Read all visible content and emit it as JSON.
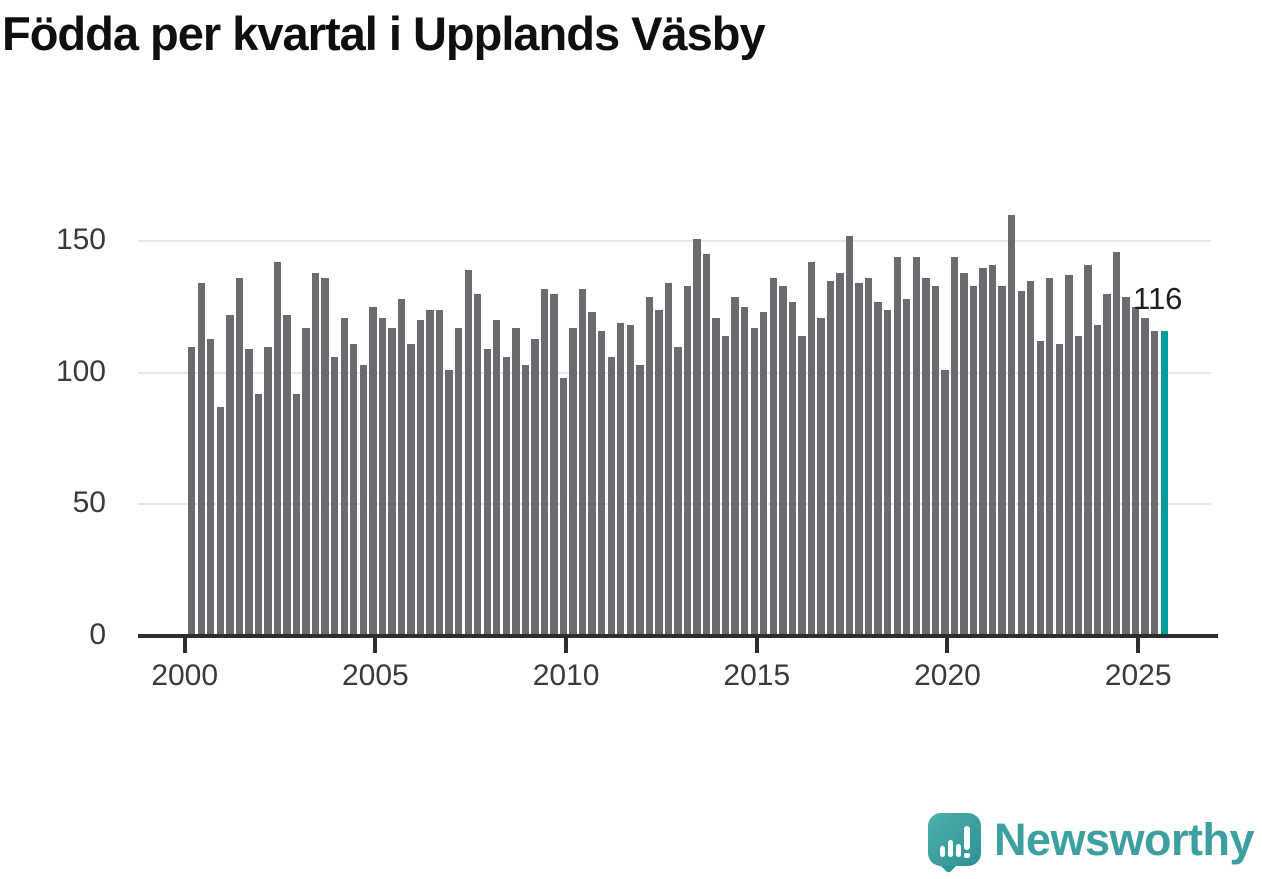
{
  "title": "Födda per kvartal i Upplands Väsby",
  "annotation": {
    "value_label": "116"
  },
  "logo": {
    "text": "Newsworthy"
  },
  "colors": {
    "bar": "#6a6a6f",
    "highlight": "#009b9b",
    "grid": "#e7e7e7",
    "axis": "#2e2e2e",
    "tick_label": "#3a3a3a",
    "title": "#0f0f0f",
    "logo_teal": "#3da0a0"
  },
  "chart_data": {
    "type": "bar",
    "title": "Födda per kvartal i Upplands Väsby",
    "xlabel": "",
    "ylabel": "",
    "start_quarter": "2000Q1",
    "end_quarter": "2025Q3",
    "x_tick_labels": [
      "2000",
      "2005",
      "2010",
      "2015",
      "2020",
      "2025"
    ],
    "x_tick_quarter_indices": [
      0,
      20,
      40,
      60,
      80,
      100
    ],
    "y_ticks": [
      0,
      50,
      100,
      150
    ],
    "ylim": [
      0,
      165
    ],
    "grid": true,
    "legend": false,
    "highlight_last": true,
    "last_value_label": "116",
    "values": [
      110,
      134,
      113,
      87,
      122,
      136,
      109,
      92,
      110,
      142,
      122,
      92,
      117,
      138,
      136,
      106,
      121,
      111,
      103,
      125,
      121,
      117,
      128,
      111,
      120,
      124,
      124,
      101,
      117,
      139,
      130,
      109,
      120,
      106,
      117,
      103,
      113,
      132,
      130,
      98,
      117,
      132,
      123,
      116,
      106,
      119,
      118,
      103,
      129,
      124,
      134,
      110,
      133,
      151,
      145,
      121,
      114,
      129,
      125,
      117,
      123,
      136,
      133,
      127,
      114,
      142,
      121,
      135,
      138,
      152,
      134,
      136,
      127,
      124,
      144,
      128,
      144,
      136,
      133,
      101,
      144,
      138,
      133,
      140,
      141,
      133,
      160,
      131,
      135,
      112,
      136,
      111,
      137,
      114,
      141,
      118,
      130,
      146,
      129,
      125,
      121,
      116,
      116
    ]
  }
}
